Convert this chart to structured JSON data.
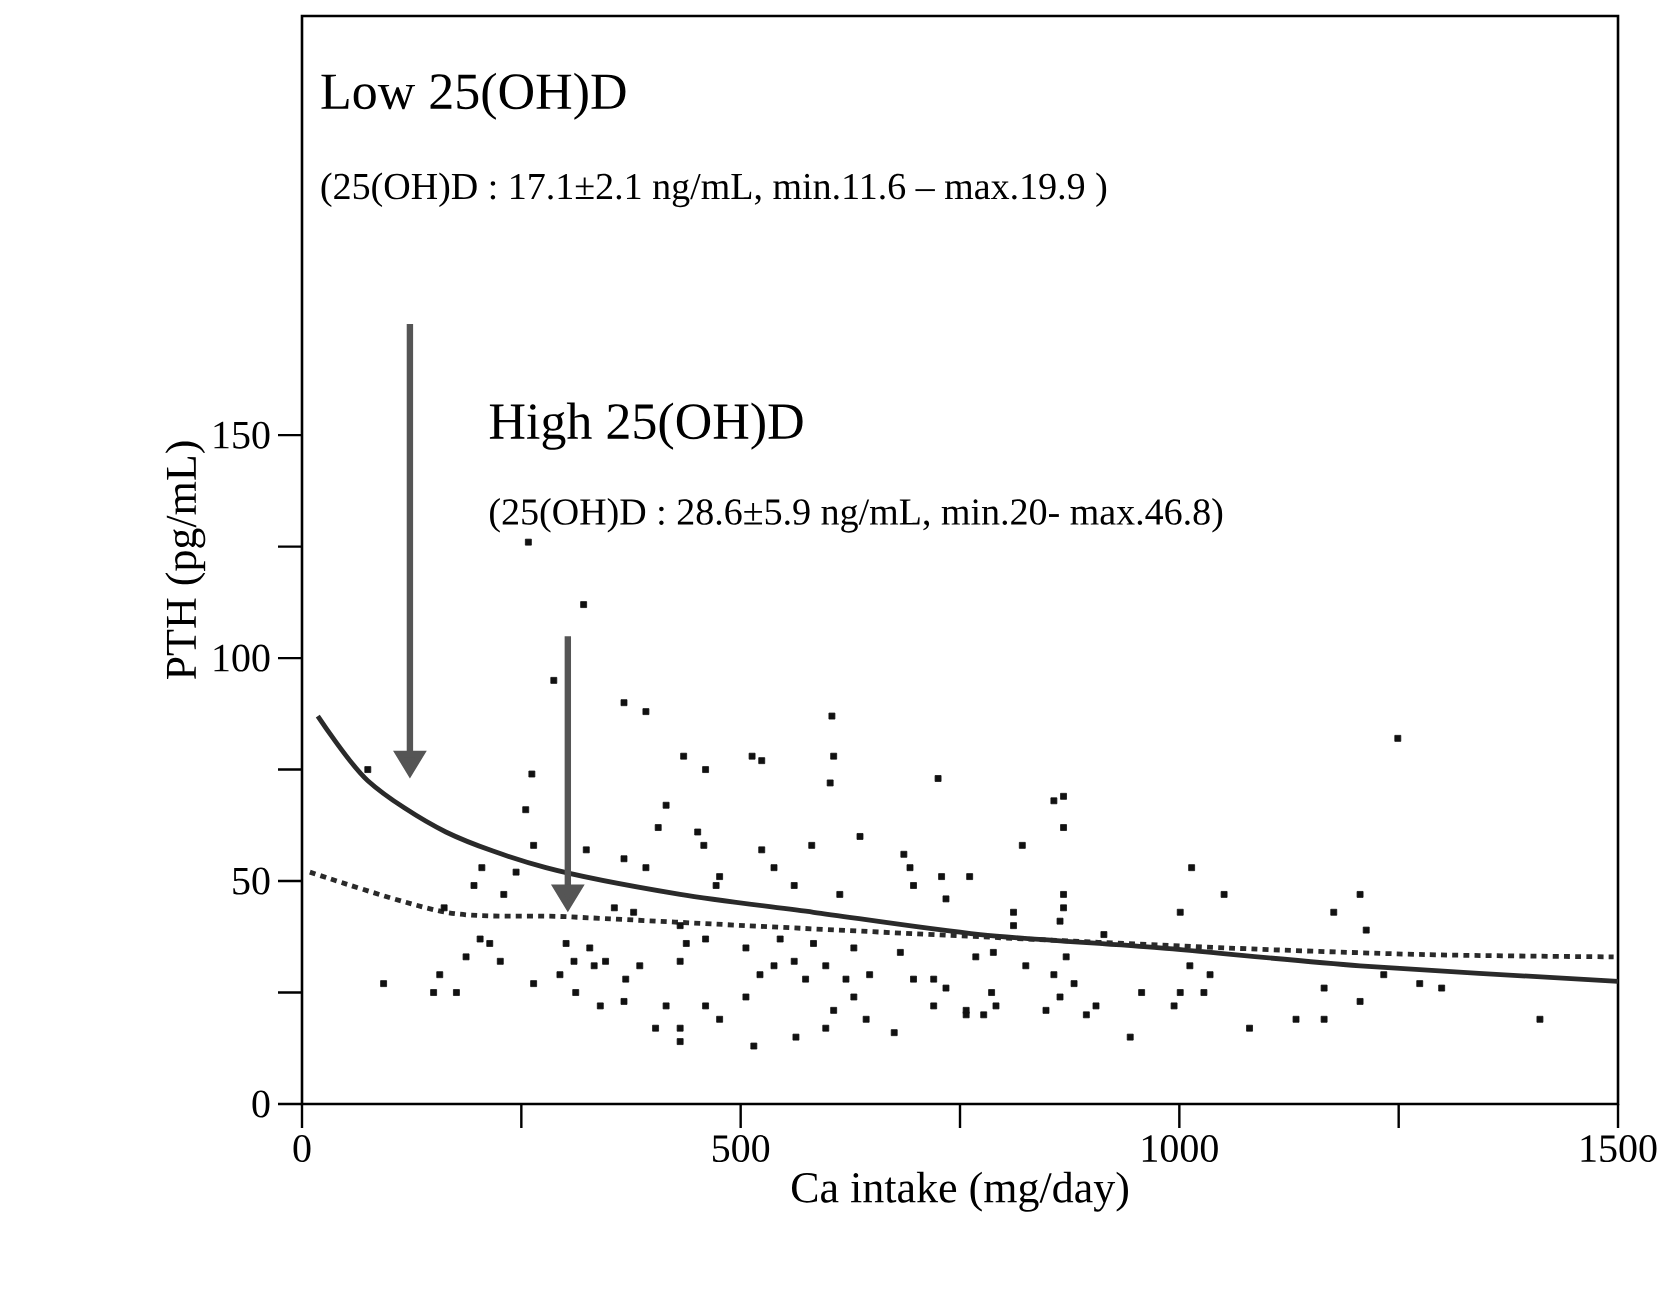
{
  "chart_data": {
    "type": "scatter",
    "xlabel": "Ca intake (mg/day)",
    "ylabel": "PTH (pg/mL)",
    "xlim": [
      0,
      1500
    ],
    "ylim": [
      0,
      244
    ],
    "xticks": [
      0,
      {
        "value": 250,
        "label": null
      },
      500,
      {
        "value": 750,
        "label": null
      },
      1000,
      {
        "value": 1250,
        "label": null
      },
      1500
    ],
    "yticks": [
      0,
      {
        "value": 25,
        "label": null
      },
      50,
      {
        "value": 75,
        "label": null
      },
      100,
      {
        "value": 125,
        "label": null
      },
      150
    ],
    "annotations": [
      "Low 25(OH)D",
      "(25(OH)D : 17.1±2.1 ng/mL, min.11.6 – max.19.9 )",
      "High 25(OH)D",
      "(25(OH)D : 28.6±5.9 ng/mL, min.20- max.46.8)"
    ],
    "series": [
      {
        "color": "#111111",
        "marker": "square",
        "x": [
          258,
          321,
          287,
          367,
          392,
          604,
          75,
          262,
          435,
          460,
          513,
          524,
          606,
          602,
          725,
          255,
          415,
          406,
          451,
          636,
          458,
          524,
          581,
          324,
          264,
          367,
          392,
          686,
          205,
          538,
          476,
          561,
          693,
          729,
          697,
          196,
          230,
          244,
          162,
          734,
          472,
          613,
          356,
          378,
          431,
          460,
          203,
          214,
          187,
          226,
          93,
          157,
          150,
          176,
          301,
          328,
          310,
          346,
          294,
          333,
          369,
          385,
          264,
          312,
          340,
          367,
          415,
          431,
          403,
          460,
          476,
          431,
          506,
          515,
          522,
          538,
          561,
          597,
          574,
          620,
          647,
          629,
          563,
          597,
          606,
          643,
          675,
          697,
          720,
          734,
          757,
          720,
          438,
          506,
          545,
          583,
          629,
          682,
          431,
          1249,
          857,
          868,
          868,
          821,
          761,
          1014,
          1051,
          1001,
          1176,
          1206,
          1213,
          868,
          868,
          864,
          811,
          811,
          914,
          768,
          788,
          825,
          871,
          857,
          880,
          864,
          848,
          894,
          905,
          786,
          791,
          757,
          777,
          944,
          957,
          994,
          1001,
          1028,
          1012,
          1035,
          1080,
          1133,
          1165,
          1165,
          1206,
          1233,
          1274,
          1299,
          1411
        ],
        "values": [
          126,
          112,
          95,
          90,
          88,
          87,
          75,
          74,
          78,
          75,
          78,
          77,
          78,
          72,
          73,
          66,
          67,
          62,
          61,
          60,
          58,
          57,
          58,
          57,
          58,
          55,
          53,
          56,
          53,
          53,
          51,
          49,
          53,
          51,
          49,
          49,
          47,
          52,
          44,
          46,
          49,
          47,
          44,
          43,
          40,
          37,
          37,
          36,
          33,
          32,
          27,
          29,
          25,
          25,
          36,
          35,
          32,
          32,
          29,
          31,
          28,
          31,
          27,
          25,
          22,
          23,
          22,
          17,
          17,
          22,
          19,
          14,
          24,
          13,
          29,
          31,
          32,
          31,
          28,
          28,
          29,
          24,
          15,
          17,
          21,
          19,
          16,
          28,
          28,
          26,
          20,
          22,
          36,
          35,
          37,
          36,
          35,
          34,
          32,
          82,
          68,
          69,
          62,
          58,
          51,
          53,
          47,
          43,
          43,
          47,
          39,
          47,
          44,
          41,
          43,
          40,
          38,
          33,
          34,
          31,
          33,
          29,
          27,
          24,
          21,
          20,
          22,
          25,
          22,
          21,
          20,
          15,
          25,
          22,
          25,
          25,
          31,
          29,
          17,
          19,
          19,
          26,
          23,
          29,
          27,
          26,
          19
        ]
      },
      {
        "type": "line",
        "color": "#2a2a2a",
        "line_style": "solid",
        "x": [
          18,
          75,
          164,
          278,
          431,
          583,
          773,
          978,
          1206,
          1500
        ],
        "values": [
          87,
          72.5,
          61,
          53,
          47,
          43,
          38,
          35,
          31,
          27.5
        ]
      },
      {
        "type": "line",
        "color": "#2a2a2a",
        "line_style": "dotted",
        "x": [
          9,
          164,
          301,
          506,
          773,
          1053,
          1281,
          1495
        ],
        "values": [
          52,
          43,
          42,
          40,
          37.5,
          35,
          33.5,
          33
        ]
      }
    ]
  }
}
